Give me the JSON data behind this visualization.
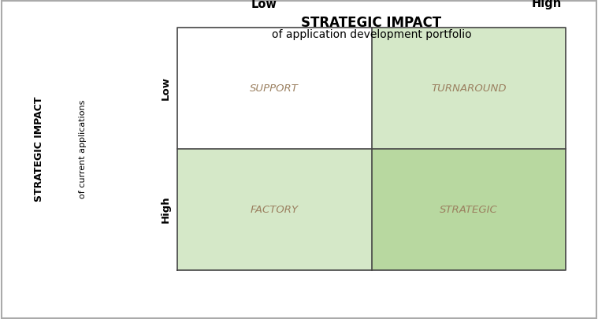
{
  "title_line1": "STRATEGIC IMPACT",
  "title_line2": "of application development portfolio",
  "x_label_low": "Low",
  "x_label_high": "High",
  "y_label_line1": "STRATEGIC IMPACT",
  "y_label_line2": "of current applications",
  "y_low_label": "Low",
  "y_high_label": "High",
  "quadrant_labels": [
    "SUPPORT",
    "TURNAROUND",
    "FACTORY",
    "STRATEGIC"
  ],
  "quadrant_colors": [
    "#ffffff",
    "#d5e8c8",
    "#d5e8c8",
    "#b8d8a0"
  ],
  "grid_color": "#444444",
  "text_color": "#9b8060",
  "title_color": "#000000",
  "subtitle_color": "#000000",
  "axis_label_color": "#000000",
  "background_color": "#ffffff",
  "outer_border_color": "#aaaaaa",
  "quadrant_label_fontsize": 9.5,
  "title_fontsize": 12,
  "subtitle_fontsize": 10,
  "axis_header_fontsize": 10.5,
  "side_label_fontsize": 9,
  "low_high_fontsize": 9.5
}
